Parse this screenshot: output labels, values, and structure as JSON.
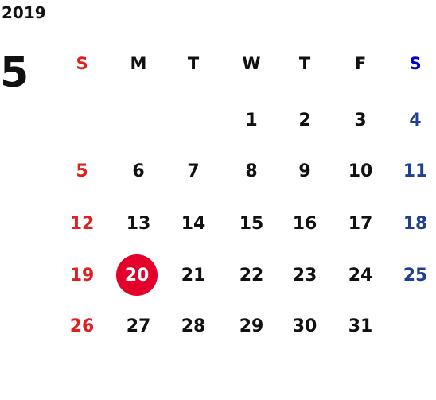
{
  "year": "2019",
  "month": "5",
  "weekdays": [
    "S",
    "M",
    "T",
    "W",
    "T",
    "F",
    "S"
  ],
  "weeks": [
    [
      null,
      null,
      null,
      1,
      2,
      3,
      4
    ],
    [
      5,
      6,
      7,
      8,
      9,
      10,
      11
    ],
    [
      12,
      13,
      14,
      15,
      16,
      17,
      18
    ],
    [
      19,
      20,
      21,
      22,
      23,
      24,
      25
    ],
    [
      26,
      27,
      28,
      29,
      30,
      31,
      null
    ]
  ],
  "highlight": 20
}
